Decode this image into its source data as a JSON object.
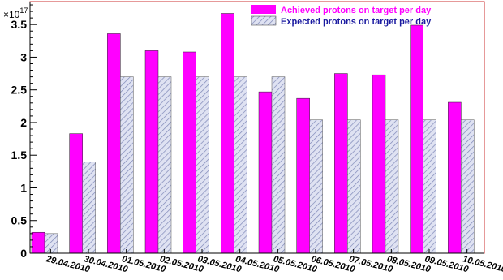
{
  "chart_data": {
    "type": "bar",
    "categories": [
      "29.04.2010",
      "30.04.2010",
      "01.05.2010",
      "02.05.2010",
      "03.05.2010",
      "04.05.2010",
      "05.05.2010",
      "06.05.2010",
      "07.05.2010",
      "08.05.2010",
      "09.05.2010",
      "10.05.2010"
    ],
    "series": [
      {
        "name": "Achieved protons on target per day",
        "color": "#ff00ff",
        "text_color": "#ff00ff",
        "pattern": "solid",
        "values": [
          0.32,
          1.83,
          3.36,
          3.1,
          3.08,
          3.67,
          2.47,
          2.37,
          2.75,
          2.73,
          3.49,
          2.31
        ]
      },
      {
        "name": "Expected protons on target per day",
        "color": "#b8bfe0",
        "text_color": "#1a1aa0",
        "pattern": "hatched",
        "values": [
          0.3,
          1.4,
          2.7,
          2.7,
          2.7,
          2.7,
          2.7,
          2.04,
          2.04,
          2.04,
          2.04,
          2.04
        ]
      }
    ],
    "y_multiplier": "×10",
    "y_exponent": "17",
    "ylim": [
      0,
      3.85
    ],
    "yticks": [
      "0",
      "0.5",
      "1",
      "1.5",
      "2",
      "2.5",
      "3",
      "3.5"
    ],
    "ytick_values": [
      0,
      0.5,
      1,
      1.5,
      2,
      2.5,
      3,
      3.5
    ],
    "legend_position": "top-right",
    "grid": false,
    "frame_color": "#cc3333"
  }
}
